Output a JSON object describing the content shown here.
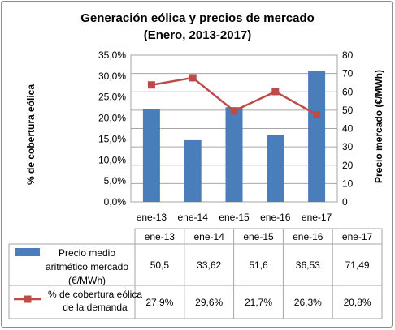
{
  "chart_data": {
    "type": "bar",
    "title": "Generación eólica y precios de mercado",
    "subtitle": "(Enero, 2013-2017)",
    "categories": [
      "ene-13",
      "ene-14",
      "ene-15",
      "ene-16",
      "ene-17"
    ],
    "ylabel_left": "% de cobertura eólica",
    "ylabel_right": "Precio mercado (€/MWh)",
    "left_axis": {
      "ylim": [
        0,
        35
      ],
      "ticks": [
        "0,0%",
        "5,0%",
        "10,0%",
        "15,0%",
        "20,0%",
        "25,0%",
        "30,0%",
        "35,0%"
      ]
    },
    "right_axis": {
      "ylim": [
        0,
        80
      ],
      "ticks": [
        "0",
        "10",
        "20",
        "30",
        "40",
        "50",
        "60",
        "70",
        "80"
      ]
    },
    "series": [
      {
        "name": "Precio medio aritmético mercado (€/MWh)",
        "type": "bar",
        "axis": "right",
        "color": "#4a7ebb",
        "values": [
          50.5,
          33.62,
          51.6,
          36.53,
          71.49
        ],
        "labels": [
          "50,5",
          "33,62",
          "51,6",
          "36,53",
          "71,49"
        ]
      },
      {
        "name": "% de cobertura eólica de la demanda",
        "type": "line",
        "axis": "left",
        "color": "#be4b48",
        "values": [
          27.9,
          29.6,
          21.7,
          26.3,
          20.8
        ],
        "labels": [
          "27,9%",
          "29,6%",
          "21,7%",
          "26,3%",
          "20,8%"
        ]
      }
    ],
    "grid": true,
    "legend": "data table below chart"
  }
}
